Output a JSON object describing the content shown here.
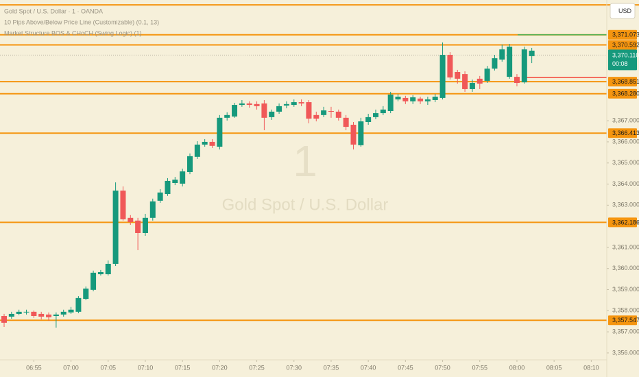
{
  "chart_data": {
    "type": "candlestick",
    "title": "Gold Spot / U.S. Dollar · 1 · OANDA",
    "indicators": [
      "10 Pips Above/Below Price Line (Customizable) (0.1, 13)",
      "Market Structure BOS & CHoCH (Swing Logic) (1)"
    ],
    "watermark_interval": "1",
    "watermark_symbol": "Gold Spot / U.S. Dollar",
    "currency": "USD",
    "up_color": "#16997c",
    "down_color": "#f05858",
    "level_color": "#f5950f",
    "categories": [
      null,
      null,
      null,
      null,
      "06:55",
      null,
      null,
      null,
      null,
      "07:00",
      null,
      null,
      null,
      null,
      "07:05",
      null,
      null,
      null,
      null,
      "07:10",
      null,
      null,
      null,
      null,
      "07:15",
      null,
      null,
      null,
      null,
      "07:20",
      null,
      null,
      null,
      null,
      "07:25",
      null,
      null,
      null,
      null,
      "07:30",
      null,
      null,
      null,
      null,
      "07:35",
      null,
      null,
      null,
      null,
      "07:40",
      null,
      null,
      null,
      null,
      "07:45",
      null,
      null,
      null,
      null,
      "07:50",
      null,
      null,
      null,
      null,
      "07:55",
      null,
      null,
      null,
      null,
      "08:00",
      null,
      null,
      null,
      null,
      "08:05",
      null,
      null,
      null,
      null,
      "08:10"
    ],
    "open": [
      3357.75,
      3357.72,
      3357.85,
      3357.92,
      3357.95,
      3357.85,
      3357.82,
      3357.75,
      3357.82,
      3357.92,
      3357.95,
      3358.56,
      3358.99,
      3359.73,
      3359.73,
      3360.22,
      3363.69,
      3362.4,
      3362.27,
      3361.68,
      3362.4,
      3363.21,
      3363.53,
      3364.05,
      3364.02,
      3364.57,
      3365.29,
      3365.87,
      3366.0,
      3365.77,
      3367.14,
      3367.2,
      3367.75,
      3367.82,
      3367.79,
      3367.82,
      3367.17,
      3367.43,
      3367.72,
      3367.75,
      3367.88,
      3367.88,
      3367.27,
      3367.27,
      3367.46,
      3367.43,
      3367.14,
      3366.81,
      3365.84,
      3366.94,
      3367.17,
      3367.36,
      3367.46,
      3368.01,
      3368.08,
      3367.92,
      3368.05,
      3367.92,
      3367.98,
      3368.08,
      3370.12,
      3369.31,
      3369.21,
      3368.5,
      3368.99,
      3368.89,
      3369.47,
      3369.9,
      3369.08,
      3369.08,
      3368.82,
      3370.06,
      null,
      null,
      null,
      null,
      null,
      null,
      null,
      null
    ],
    "high": [
      3357.85,
      3357.95,
      3358.05,
      3358.05,
      3358.01,
      3357.95,
      3357.92,
      3357.92,
      3358.05,
      3358.18,
      3358.69,
      3359.15,
      3359.9,
      3359.93,
      3360.38,
      3364.08,
      3363.89,
      3362.53,
      3362.4,
      3362.59,
      3363.31,
      3363.76,
      3364.28,
      3364.34,
      3364.73,
      3365.45,
      3366.03,
      3366.13,
      3366.13,
      3367.27,
      3367.4,
      3367.85,
      3367.98,
      3367.92,
      3367.92,
      3367.98,
      3367.53,
      3367.82,
      3367.92,
      3368.01,
      3368.01,
      3367.98,
      3367.43,
      3367.66,
      3367.66,
      3367.53,
      3367.27,
      3366.94,
      3367.14,
      3367.33,
      3367.53,
      3367.69,
      3368.37,
      3368.27,
      3368.18,
      3368.21,
      3368.14,
      3368.14,
      3368.27,
      3370.71,
      3370.25,
      3369.41,
      3369.34,
      3368.95,
      3369.12,
      3369.6,
      3370.12,
      3370.61,
      3370.64,
      3369.21,
      3370.51,
      3370.45,
      null,
      null,
      null,
      null,
      null,
      null,
      null,
      null
    ],
    "low": [
      3357.23,
      3357.62,
      3357.79,
      3357.82,
      3357.66,
      3357.59,
      3357.53,
      3357.2,
      3357.72,
      3357.85,
      3357.88,
      3358.5,
      3358.92,
      3359.67,
      3359.67,
      3360.12,
      3362.27,
      3362.07,
      3360.87,
      3361.55,
      3362.27,
      3363.11,
      3363.44,
      3363.95,
      3363.89,
      3364.47,
      3365.19,
      3365.77,
      3365.71,
      3365.64,
      3367.01,
      3367.14,
      3367.66,
      3367.62,
      3367.53,
      3366.55,
      3367.04,
      3367.33,
      3367.59,
      3367.66,
      3367.69,
      3366.88,
      3366.97,
      3367.17,
      3367.14,
      3367.01,
      3366.55,
      3365.64,
      3365.77,
      3366.81,
      3367.07,
      3367.27,
      3367.36,
      3367.92,
      3367.79,
      3367.79,
      3367.79,
      3367.75,
      3367.88,
      3368.01,
      3368.95,
      3368.76,
      3368.37,
      3368.37,
      3368.5,
      3368.79,
      3369.38,
      3369.8,
      3368.99,
      3368.63,
      3368.76,
      3369.73,
      null,
      null,
      null,
      null,
      null,
      null,
      null,
      null
    ],
    "close": [
      3357.43,
      3357.85,
      3357.95,
      3357.95,
      3357.75,
      3357.72,
      3357.69,
      3357.82,
      3357.95,
      3358.05,
      3358.6,
      3359.05,
      3359.8,
      3359.83,
      3360.22,
      3363.69,
      3362.33,
      3362.2,
      3361.68,
      3362.4,
      3363.18,
      3363.6,
      3364.15,
      3364.21,
      3364.6,
      3365.32,
      3365.87,
      3366.0,
      3365.81,
      3367.14,
      3367.27,
      3367.75,
      3367.82,
      3367.75,
      3367.69,
      3367.14,
      3367.43,
      3367.69,
      3367.79,
      3367.88,
      3367.82,
      3367.1,
      3367.1,
      3367.49,
      3367.43,
      3367.14,
      3366.71,
      3365.87,
      3366.97,
      3367.17,
      3367.36,
      3367.53,
      3368.24,
      3368.14,
      3367.92,
      3368.11,
      3367.92,
      3368.01,
      3368.14,
      3370.12,
      3369.05,
      3368.99,
      3368.5,
      3368.79,
      3368.76,
      3369.47,
      3369.96,
      3370.38,
      3370.51,
      3368.79,
      3370.38,
      3370.32,
      null,
      null,
      null,
      null,
      null,
      null,
      null,
      null
    ],
    "ylim": [
      3355.51,
      3372.72
    ],
    "yticks": [
      {
        "value": 3356,
        "label": "3,356.000"
      },
      {
        "value": 3357,
        "label": "3,357.000"
      },
      {
        "value": 3358,
        "label": "3,358.000"
      },
      {
        "value": 3359,
        "label": "3,359.000"
      },
      {
        "value": 3360,
        "label": "3,360.000"
      },
      {
        "value": 3361,
        "label": "3,361.000"
      },
      {
        "value": 3363,
        "label": "3,363.000"
      },
      {
        "value": 3364,
        "label": "3,364.000"
      },
      {
        "value": 3365,
        "label": "3,365.000"
      },
      {
        "value": 3366,
        "label": "3,366.000"
      },
      {
        "value": 3367,
        "label": "3,367.000"
      }
    ],
    "upper_line": 3372.49,
    "levels": [
      {
        "value": 3371.073,
        "label": "3,371.073"
      },
      {
        "value": 3370.592,
        "label": "3,370.592"
      },
      {
        "value": 3368.851,
        "label": "3,368.851"
      },
      {
        "value": 3368.28,
        "label": "3,368.280"
      },
      {
        "value": 3366.413,
        "label": "3,366.413"
      },
      {
        "value": 3362.186,
        "label": "3,362.186"
      },
      {
        "value": 3357.547,
        "label": "3,357.547"
      }
    ],
    "structure_lines": [
      {
        "value": 3371.073,
        "color": "#4caf50"
      },
      {
        "value": 3369.05,
        "color": "#f44336"
      }
    ],
    "current_price": {
      "value": 3370.11,
      "label": "3,370.110"
    },
    "countdown": "00:08"
  }
}
